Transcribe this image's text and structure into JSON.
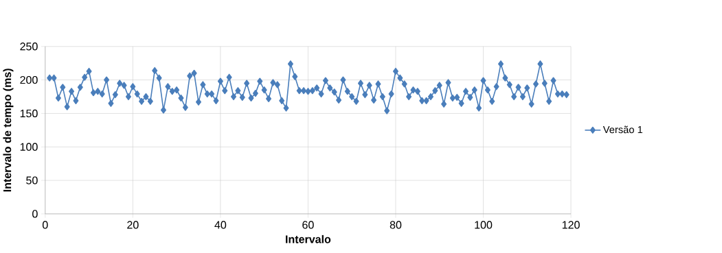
{
  "chart_data": {
    "type": "line",
    "xlabel": "Intervalo",
    "ylabel": "Intervalo de tempo (ms)",
    "x": [
      1,
      2,
      3,
      4,
      5,
      6,
      7,
      8,
      9,
      10,
      11,
      12,
      13,
      14,
      15,
      16,
      17,
      18,
      19,
      20,
      21,
      22,
      23,
      24,
      25,
      26,
      27,
      28,
      29,
      30,
      31,
      32,
      33,
      34,
      35,
      36,
      37,
      38,
      39,
      40,
      41,
      42,
      43,
      44,
      45,
      46,
      47,
      48,
      49,
      50,
      51,
      52,
      53,
      54,
      55,
      56,
      57,
      58,
      59,
      60,
      61,
      62,
      63,
      64,
      65,
      66,
      67,
      68,
      69,
      70,
      71,
      72,
      73,
      74,
      75,
      76,
      77,
      78,
      79,
      80,
      81,
      82,
      83,
      84,
      85,
      86,
      87,
      88,
      89,
      90,
      91,
      92,
      93,
      94,
      95,
      96,
      97,
      98,
      99,
      100,
      101,
      102,
      103,
      104,
      105,
      106,
      107,
      108,
      109,
      110,
      111,
      112,
      113,
      114,
      115,
      116,
      117,
      118,
      119
    ],
    "series": [
      {
        "name": "Versão 1",
        "color": "#4a7ebb",
        "values": [
          203,
          203,
          173,
          189,
          160,
          183,
          169,
          189,
          204,
          213,
          181,
          183,
          179,
          200,
          165,
          178,
          195,
          192,
          175,
          190,
          179,
          168,
          175,
          168,
          214,
          203,
          155,
          190,
          183,
          185,
          173,
          159,
          206,
          210,
          167,
          193,
          179,
          179,
          169,
          198,
          184,
          204,
          175,
          184,
          174,
          195,
          173,
          180,
          198,
          185,
          172,
          196,
          193,
          169,
          158,
          224,
          205,
          184,
          184,
          183,
          184,
          188,
          179,
          199,
          188,
          182,
          170,
          200,
          183,
          175,
          168,
          195,
          178,
          192,
          170,
          194,
          175,
          154,
          179,
          213,
          203,
          194,
          175,
          185,
          183,
          169,
          169,
          175,
          184,
          192,
          164,
          196,
          173,
          174,
          165,
          183,
          174,
          185,
          158,
          199,
          185,
          168,
          190,
          224,
          203,
          193,
          175,
          189,
          175,
          188,
          164,
          194,
          224,
          195,
          168,
          199,
          179,
          179,
          178
        ]
      }
    ],
    "xlim": [
      0,
      120
    ],
    "xticks": [
      0,
      20,
      40,
      60,
      80,
      100,
      120
    ],
    "ylim": [
      0,
      250
    ],
    "yticks": [
      0,
      50,
      100,
      150,
      200,
      250
    ],
    "grid": true,
    "legend": "right",
    "marker": "diamond",
    "line_style": "solid"
  }
}
